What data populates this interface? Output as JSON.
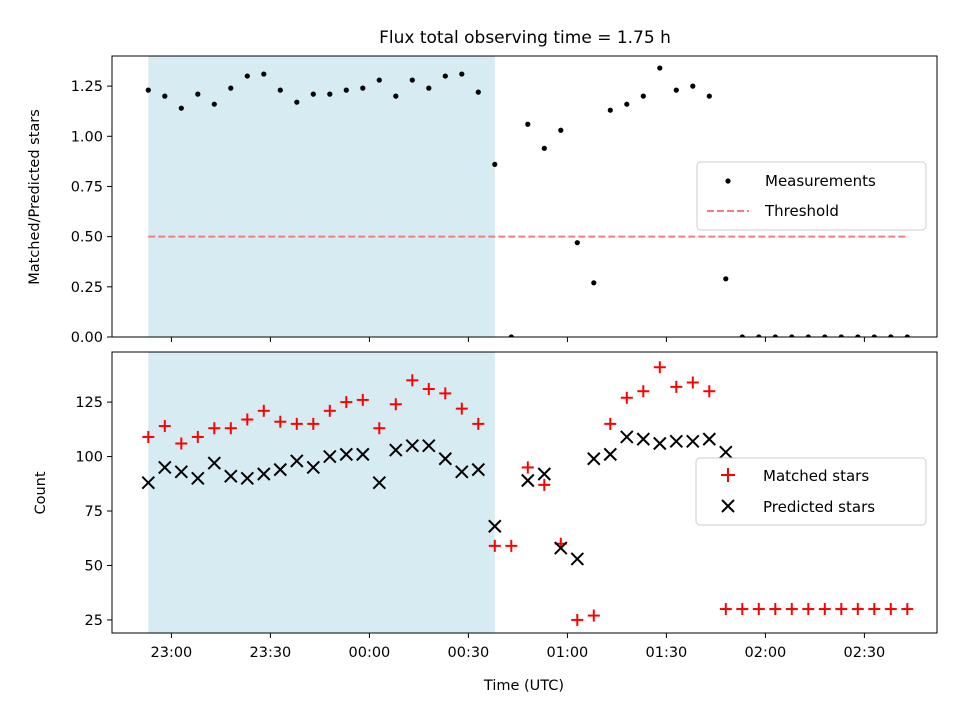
{
  "chart_data": [
    {
      "type": "scatter",
      "title": "Flux total observing time = 1.75 h",
      "ylabel": "Matched/Predicted stars",
      "xlabel": "",
      "ylim": [
        0,
        1.4
      ],
      "yticks": [
        0.0,
        0.25,
        0.5,
        0.75,
        1.0,
        1.25
      ],
      "ytick_labels": [
        "0.00",
        "0.25",
        "0.50",
        "0.75",
        "1.00",
        "1.25"
      ],
      "shaded_span_x": [
        "22:53",
        "00:38"
      ],
      "shaded_color": "#add8e6",
      "legend_position": "center-right",
      "series": [
        {
          "name": "Measurements",
          "marker": "dot",
          "color": "#000000",
          "x": [
            "22:53",
            "22:58",
            "23:03",
            "23:08",
            "23:13",
            "23:18",
            "23:23",
            "23:28",
            "23:33",
            "23:38",
            "23:43",
            "23:48",
            "23:53",
            "23:58",
            "00:03",
            "00:08",
            "00:13",
            "00:18",
            "00:23",
            "00:28",
            "00:33",
            "00:38",
            "00:43",
            "00:48",
            "00:53",
            "00:58",
            "01:03",
            "01:08",
            "01:13",
            "01:18",
            "01:23",
            "01:28",
            "01:33",
            "01:38",
            "01:43",
            "01:48",
            "01:53",
            "01:58",
            "02:03",
            "02:08",
            "02:13",
            "02:18",
            "02:23",
            "02:28",
            "02:33",
            "02:38",
            "02:43"
          ],
          "y": [
            1.23,
            1.2,
            1.14,
            1.21,
            1.16,
            1.24,
            1.3,
            1.31,
            1.23,
            1.17,
            1.21,
            1.21,
            1.23,
            1.24,
            1.28,
            1.2,
            1.28,
            1.24,
            1.3,
            1.31,
            1.22,
            0.86,
            0.0,
            1.06,
            0.94,
            1.03,
            0.47,
            0.27,
            1.13,
            1.16,
            1.2,
            1.34,
            1.23,
            1.25,
            1.2,
            0.29,
            0.0,
            0.0,
            0.0,
            0.0,
            0.0,
            0.0,
            0.0,
            0.0,
            0.0,
            0.0,
            0.0
          ]
        },
        {
          "name": "Threshold",
          "style": "dashed",
          "color": "#f08080",
          "x": [
            "22:53",
            "02:43"
          ],
          "y": [
            0.5,
            0.5
          ]
        }
      ]
    },
    {
      "type": "scatter",
      "title": "",
      "ylabel": "Count",
      "xlabel": "Time (UTC)",
      "ylim": [
        19,
        148
      ],
      "yticks": [
        25,
        50,
        75,
        100,
        125
      ],
      "ytick_labels": [
        "25",
        "50",
        "75",
        "100",
        "125"
      ],
      "xlim": [
        "22:42",
        "02:52"
      ],
      "xticks": [
        "23:00",
        "23:30",
        "00:00",
        "00:30",
        "01:00",
        "01:30",
        "02:00",
        "02:30"
      ],
      "shaded_span_x": [
        "22:53",
        "00:38"
      ],
      "shaded_color": "#add8e6",
      "legend_position": "center-right",
      "series": [
        {
          "name": "Matched stars",
          "marker": "plus",
          "color": "#ff0000",
          "x": [
            "22:53",
            "22:58",
            "23:03",
            "23:08",
            "23:13",
            "23:18",
            "23:23",
            "23:28",
            "23:33",
            "23:38",
            "23:43",
            "23:48",
            "23:53",
            "23:58",
            "00:03",
            "00:08",
            "00:13",
            "00:18",
            "00:23",
            "00:28",
            "00:33",
            "00:38",
            "00:43",
            "00:48",
            "00:53",
            "00:58",
            "01:03",
            "01:08",
            "01:13",
            "01:18",
            "01:23",
            "01:28",
            "01:33",
            "01:38",
            "01:43",
            "01:48",
            "01:53",
            "01:58",
            "02:03",
            "02:08",
            "02:13",
            "02:18",
            "02:23",
            "02:28",
            "02:33",
            "02:38",
            "02:43"
          ],
          "y": [
            109,
            114,
            106,
            109,
            113,
            113,
            117,
            121,
            116,
            115,
            115,
            121,
            125,
            126,
            113,
            124,
            135,
            131,
            129,
            122,
            115,
            59,
            59,
            95,
            87,
            60,
            25,
            27,
            115,
            127,
            130,
            141,
            132,
            134,
            130,
            30,
            30,
            30,
            30,
            30,
            30,
            30,
            30,
            30,
            30,
            30,
            30
          ]
        },
        {
          "name": "Predicted stars",
          "marker": "x",
          "color": "#000000",
          "x": [
            "22:53",
            "22:58",
            "23:03",
            "23:08",
            "23:13",
            "23:18",
            "23:23",
            "23:28",
            "23:33",
            "23:38",
            "23:43",
            "23:48",
            "23:53",
            "23:58",
            "00:03",
            "00:08",
            "00:13",
            "00:18",
            "00:23",
            "00:28",
            "00:33",
            "00:38",
            "00:48",
            "00:53",
            "00:58",
            "01:03",
            "01:08",
            "01:13",
            "01:18",
            "01:23",
            "01:28",
            "01:33",
            "01:38",
            "01:43",
            "01:48"
          ],
          "y": [
            88,
            95,
            93,
            90,
            97,
            91,
            90,
            92,
            94,
            98,
            95,
            100,
            101,
            101,
            88,
            103,
            105,
            105,
            99,
            93,
            94,
            68,
            89,
            92,
            58,
            53,
            99,
            101,
            109,
            108,
            106,
            107,
            107,
            108,
            102
          ]
        }
      ]
    }
  ]
}
